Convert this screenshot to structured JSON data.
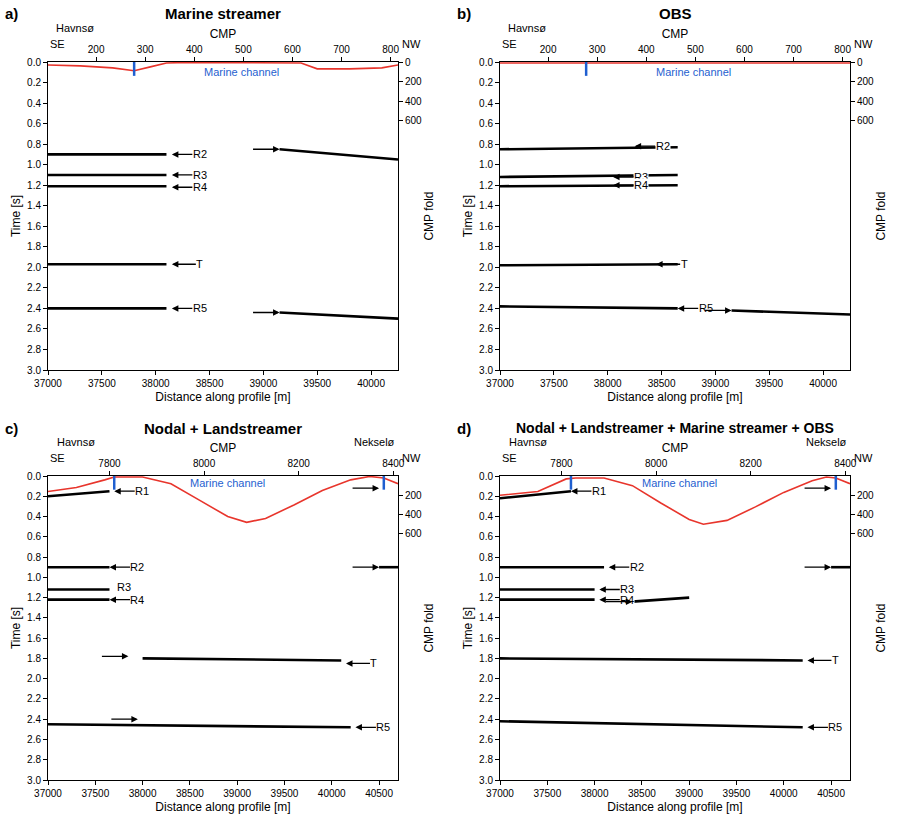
{
  "chart_data": [
    {
      "type": "line",
      "panel": "a)",
      "title": "Marine streamer",
      "xlabel": "Distance along profile [m]",
      "ylabel": "Time [s]",
      "x2label": "CMP",
      "y2label": "CMP fold",
      "xlim": [
        37000,
        40250
      ],
      "xticks": [
        37000,
        37500,
        38000,
        38500,
        39000,
        39500,
        40000
      ],
      "x2lim": [
        102,
        815
      ],
      "x2ticks": [
        200,
        300,
        400,
        500,
        600,
        700,
        800
      ],
      "ylim": [
        3,
        0
      ],
      "yticks": [
        {
          "value": 0,
          "label": "0.0"
        },
        0.2,
        0.4,
        0.6,
        0.8,
        {
          "value": 1,
          "label": "1.0"
        },
        1.2,
        1.4,
        1.6,
        1.8,
        {
          "value": 2,
          "label": "2.0"
        },
        2.2,
        2.4,
        2.6,
        2.8,
        {
          "value": 3,
          "label": "3.0"
        }
      ],
      "y2lim": [
        3150,
        0
      ],
      "y2ticks": [
        0,
        200,
        400,
        600
      ],
      "ends": [
        "SE",
        "NW"
      ],
      "places": [
        {
          "text": "Havnsø",
          "x": 37250
        }
      ],
      "channel": {
        "text": "Marine channel",
        "x": 38800,
        "y": 0.1,
        "marks": [
          37800
        ],
        "color": "#1f5fd0"
      },
      "series": [
        {
          "name": "CMP fold",
          "axis": "y2",
          "color": "#e8352c",
          "x": [
            37000,
            37300,
            37600,
            37800,
            37950,
            38100,
            38300,
            39100,
            39350,
            39500,
            39800,
            40100,
            40250
          ],
          "values": [
            30,
            40,
            60,
            90,
            50,
            10,
            5,
            5,
            10,
            70,
            70,
            60,
            30
          ]
        },
        {
          "name": "R2",
          "color": "#000000",
          "x": [
            37000,
            38100,
            38600,
            39150,
            40250
          ],
          "values": [
            0.9,
            0.9,
            null,
            0.85,
            0.95
          ]
        },
        {
          "name": "R3",
          "color": "#000000",
          "x": [
            37000,
            38100
          ],
          "values": [
            1.1,
            1.1
          ]
        },
        {
          "name": "R4",
          "color": "#000000",
          "x": [
            37000,
            38100
          ],
          "values": [
            1.21,
            1.21
          ]
        },
        {
          "name": "T",
          "color": "#000000",
          "x": [
            37000,
            38100
          ],
          "values": [
            1.97,
            1.97
          ]
        },
        {
          "name": "R5",
          "color": "#000000",
          "x": [
            37000,
            38100,
            38600,
            39150,
            40250
          ],
          "values": [
            2.4,
            2.4,
            null,
            2.44,
            2.5
          ]
        }
      ],
      "annotations": [
        {
          "text": "R2",
          "x": 38150,
          "y": 0.9,
          "arrow": "left"
        },
        {
          "text": "R3",
          "x": 38150,
          "y": 1.1,
          "arrow": "left"
        },
        {
          "text": "R4",
          "x": 38150,
          "y": 1.22,
          "arrow": "left"
        },
        {
          "text": "T",
          "x": 38150,
          "y": 1.97,
          "arrow": "left"
        },
        {
          "text": "R5",
          "x": 38150,
          "y": 2.4,
          "arrow": "left"
        },
        {
          "x": 39150,
          "y": 0.85,
          "arrow": "right"
        },
        {
          "x": 39150,
          "y": 2.44,
          "arrow": "right"
        }
      ]
    },
    {
      "type": "line",
      "panel": "b)",
      "title": "OBS",
      "xlabel": "Distance along profile [m]",
      "ylabel": "Time [s]",
      "x2label": "CMP",
      "y2label": "CMP fold",
      "xlim": [
        37000,
        40250
      ],
      "xticks": [
        37000,
        37500,
        38000,
        38500,
        39000,
        39500,
        40000
      ],
      "x2lim": [
        102,
        815
      ],
      "x2ticks": [
        200,
        300,
        400,
        500,
        600,
        700,
        800
      ],
      "ylim": [
        3,
        0
      ],
      "yticks": [
        {
          "value": 0,
          "label": "0.0"
        },
        0.2,
        0.4,
        0.6,
        0.8,
        {
          "value": 1,
          "label": "1.0"
        },
        1.2,
        1.4,
        1.6,
        1.8,
        {
          "value": 2,
          "label": "2.0"
        },
        2.2,
        2.4,
        2.6,
        2.8,
        {
          "value": 3,
          "label": "3.0"
        }
      ],
      "y2lim": [
        3150,
        0
      ],
      "y2ticks": [
        0,
        200,
        400,
        600
      ],
      "ends": [
        "SE",
        "NW"
      ],
      "places": [
        {
          "text": "Havnsø",
          "x": 37250
        }
      ],
      "channel": {
        "text": "Marine channel",
        "x": 38800,
        "y": 0.1,
        "marks": [
          37800
        ],
        "color": "#1f5fd0"
      },
      "series": [
        {
          "name": "CMP fold",
          "axis": "y2",
          "color": "#e8352c",
          "x": [
            37000,
            40250
          ],
          "values": [
            10,
            10
          ]
        },
        {
          "name": "R2",
          "color": "#000000",
          "x": [
            37000,
            38650
          ],
          "values": [
            0.85,
            0.83
          ]
        },
        {
          "name": "R3",
          "color": "#000000",
          "x": [
            37000,
            38650
          ],
          "values": [
            1.12,
            1.1
          ]
        },
        {
          "name": "R4",
          "color": "#000000",
          "x": [
            37000,
            38650
          ],
          "values": [
            1.21,
            1.2
          ]
        },
        {
          "name": "T",
          "color": "#000000",
          "x": [
            37000,
            38650
          ],
          "values": [
            1.98,
            1.97
          ]
        },
        {
          "name": "R5",
          "color": "#000000",
          "x": [
            37000,
            38650,
            38900,
            39150,
            40250
          ],
          "values": [
            2.38,
            2.4,
            null,
            2.42,
            2.46
          ]
        }
      ],
      "annotations": [
        {
          "text": "R2",
          "x": 38250,
          "y": 0.82,
          "arrow": "left"
        },
        {
          "text": "R3",
          "x": 38050,
          "y": 1.12,
          "arrow": "left"
        },
        {
          "text": "R4",
          "x": 38050,
          "y": 1.2,
          "arrow": "left"
        },
        {
          "text": "T",
          "x": 38450,
          "y": 1.97,
          "arrow": "left"
        },
        {
          "text": "R5",
          "x": 38650,
          "y": 2.4,
          "arrow": "left"
        },
        {
          "x": 39150,
          "y": 2.42,
          "arrow": "right"
        }
      ]
    },
    {
      "type": "line",
      "panel": "c)",
      "title": "Nodal + Landstreamer",
      "xlabel": "Distance along profile [m]",
      "ylabel": "Time [s]",
      "x2label": "CMP",
      "y2label": "CMP fold",
      "xlim": [
        37000,
        40700
      ],
      "xticks": [
        37000,
        37500,
        38000,
        38500,
        39000,
        39500,
        40000,
        40500
      ],
      "x2lim": [
        7670,
        8410
      ],
      "x2ticks": [
        7800,
        8000,
        8200,
        8400
      ],
      "ylim": [
        3,
        0
      ],
      "yticks": [
        {
          "value": 0,
          "label": "0.0"
        },
        0.2,
        0.4,
        0.6,
        0.8,
        {
          "value": 1,
          "label": "1.0"
        },
        1.2,
        1.4,
        1.6,
        1.8,
        {
          "value": 2,
          "label": "2.0"
        },
        2.2,
        2.4,
        2.6,
        2.8,
        {
          "value": 3,
          "label": "3.0"
        }
      ],
      "y2lim": [
        3150,
        0
      ],
      "y2ticks": [
        200,
        400,
        600
      ],
      "ends": [
        "SE",
        "NW"
      ],
      "places": [
        {
          "text": "Havnsø",
          "x": 37300
        },
        {
          "text": "Nekselø",
          "x": 40450
        }
      ],
      "channel": {
        "text": "Marine channel",
        "x": 38900,
        "y": 0.07,
        "marks": [
          37700,
          40550
        ],
        "color": "#1f5fd0"
      },
      "series": [
        {
          "name": "CMP fold",
          "axis": "y2",
          "color": "#e8352c",
          "x": [
            37000,
            37300,
            37600,
            37700,
            38000,
            38300,
            38600,
            38900,
            39100,
            39300,
            39600,
            39900,
            40200,
            40400,
            40550,
            40700
          ],
          "values": [
            160,
            120,
            40,
            10,
            10,
            80,
            250,
            420,
            480,
            440,
            300,
            150,
            40,
            5,
            20,
            80
          ]
        },
        {
          "name": "R1",
          "color": "#000000",
          "x": [
            37000,
            37650
          ],
          "values": [
            0.2,
            0.15
          ]
        },
        {
          "name": "R2",
          "color": "#000000",
          "x": [
            37000,
            37650,
            39000,
            40500,
            40700
          ],
          "values": [
            0.9,
            0.9,
            null,
            0.9,
            0.9
          ]
        },
        {
          "name": "R3",
          "color": "#000000",
          "x": [
            37000,
            37650
          ],
          "values": [
            1.12,
            1.12
          ]
        },
        {
          "name": "R4",
          "color": "#000000",
          "x": [
            37000,
            37650
          ],
          "values": [
            1.22,
            1.22
          ]
        },
        {
          "name": "T",
          "color": "#000000",
          "x": [
            38000,
            40100
          ],
          "values": [
            1.8,
            1.82
          ]
        },
        {
          "name": "R5",
          "color": "#000000",
          "x": [
            37000,
            40200
          ],
          "values": [
            2.45,
            2.48
          ]
        }
      ],
      "annotations": [
        {
          "text": "R1",
          "x": 37700,
          "y": 0.15,
          "arrow": "left"
        },
        {
          "text": "R2",
          "x": 37650,
          "y": 0.9,
          "arrow": "left"
        },
        {
          "text": "R3",
          "x": 37800,
          "y": 1.1
        },
        {
          "text": "R4",
          "x": 37650,
          "y": 1.22,
          "arrow": "left"
        },
        {
          "x": 37850,
          "y": 1.78,
          "arrow": "right"
        },
        {
          "x": 37950,
          "y": 2.4,
          "arrow": "right"
        },
        {
          "text": "T",
          "x": 40150,
          "y": 1.85,
          "arrow": "left"
        },
        {
          "text": "R5",
          "x": 40250,
          "y": 2.48,
          "arrow": "left"
        },
        {
          "x": 40500,
          "y": 0.12,
          "arrow": "right"
        },
        {
          "x": 40500,
          "y": 0.9,
          "arrow": "right"
        }
      ]
    },
    {
      "type": "line",
      "panel": "d)",
      "title": "Nodal + Landstreamer + Marine streamer + OBS",
      "xlabel": "Distance along profile [m]",
      "ylabel": "Time [s]",
      "x2label": "CMP",
      "y2label": "CMP fold",
      "xlim": [
        37000,
        40700
      ],
      "xticks": [
        37000,
        37500,
        38000,
        38500,
        39000,
        39500,
        40000,
        40500
      ],
      "x2lim": [
        7670,
        8410
      ],
      "x2ticks": [
        7800,
        8000,
        8200,
        8400
      ],
      "ylim": [
        3,
        0
      ],
      "yticks": [
        {
          "value": 0,
          "label": "0.0"
        },
        0.2,
        0.4,
        0.6,
        0.8,
        {
          "value": 1,
          "label": "1.0"
        },
        1.2,
        1.4,
        1.6,
        1.8,
        {
          "value": 2,
          "label": "2.0"
        },
        2.2,
        2.4,
        2.6,
        2.8,
        {
          "value": 3,
          "label": "3.0"
        }
      ],
      "y2lim": [
        3150,
        0
      ],
      "y2ticks": [
        200,
        400,
        600
      ],
      "ends": [
        "SE",
        "NW"
      ],
      "places": [
        {
          "text": "Havnsø",
          "x": 37300
        },
        {
          "text": "Nekselø",
          "x": 40450
        }
      ],
      "channel": {
        "text": "Marine channel",
        "x": 38900,
        "y": 0.07,
        "marks": [
          37750,
          40550
        ],
        "color": "#1f5fd0"
      },
      "series": [
        {
          "name": "CMP fold",
          "axis": "y2",
          "color": "#e8352c",
          "x": [
            37000,
            37400,
            37700,
            37800,
            38100,
            38400,
            38700,
            39000,
            39150,
            39400,
            39700,
            40000,
            40300,
            40450,
            40550,
            40700
          ],
          "values": [
            200,
            160,
            30,
            20,
            20,
            100,
            280,
            450,
            500,
            460,
            320,
            170,
            50,
            10,
            20,
            80
          ]
        },
        {
          "name": "R1",
          "color": "#000000",
          "x": [
            37000,
            37750
          ],
          "values": [
            0.22,
            0.15
          ]
        },
        {
          "name": "R2",
          "color": "#000000",
          "x": [
            37000,
            38100,
            39000,
            40500,
            40700
          ],
          "values": [
            0.9,
            0.9,
            null,
            0.9,
            0.9
          ]
        },
        {
          "name": "R3",
          "color": "#000000",
          "x": [
            37000,
            38000
          ],
          "values": [
            1.12,
            1.12
          ]
        },
        {
          "name": "R4",
          "color": "#000000",
          "x": [
            37000,
            38000,
            38200,
            38400,
            39000
          ],
          "values": [
            1.22,
            1.22,
            null,
            1.24,
            1.2
          ]
        },
        {
          "name": "T",
          "color": "#000000",
          "x": [
            37000,
            40200
          ],
          "values": [
            1.8,
            1.82
          ]
        },
        {
          "name": "R5",
          "color": "#000000",
          "x": [
            37000,
            40200
          ],
          "values": [
            2.42,
            2.48
          ]
        }
      ],
      "annotations": [
        {
          "text": "R1",
          "x": 37750,
          "y": 0.15,
          "arrow": "left"
        },
        {
          "text": "R2",
          "x": 38150,
          "y": 0.9,
          "arrow": "left"
        },
        {
          "text": "R3",
          "x": 38050,
          "y": 1.12,
          "arrow": "left"
        },
        {
          "text": "R4",
          "x": 38050,
          "y": 1.22,
          "arrow": "left"
        },
        {
          "x": 38400,
          "y": 1.24,
          "arrow": "right"
        },
        {
          "text": "T",
          "x": 40250,
          "y": 1.82,
          "arrow": "left"
        },
        {
          "text": "R5",
          "x": 40250,
          "y": 2.48,
          "arrow": "left"
        },
        {
          "x": 40500,
          "y": 0.12,
          "arrow": "right"
        },
        {
          "x": 40500,
          "y": 0.9,
          "arrow": "right"
        }
      ]
    }
  ]
}
